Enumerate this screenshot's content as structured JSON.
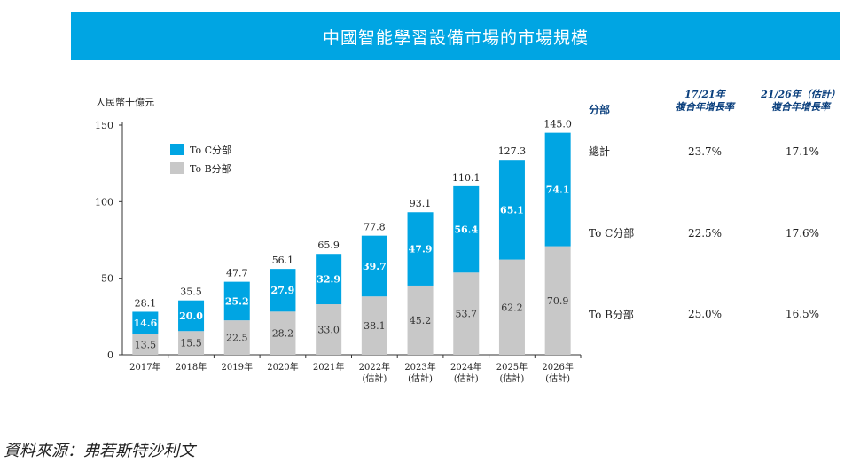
{
  "title": "中國智能學習設備市場的市場規模",
  "source": "資料來源：弗若斯特沙利文",
  "chart_data": {
    "type": "bar",
    "stacked": true,
    "ylabel": "人民幣十億元",
    "ylim": [
      0,
      150
    ],
    "yticks": [
      0,
      50,
      100,
      150
    ],
    "categories": [
      "2017年",
      "2018年",
      "2019年",
      "2020年",
      "2021年",
      "2022年",
      "2023年",
      "2024年",
      "2025年",
      "2026年"
    ],
    "category_sub": [
      "",
      "",
      "",
      "",
      "",
      "(估計)",
      "(估計)",
      "(估計)",
      "(估計)",
      "(估計)"
    ],
    "series": [
      {
        "name": "To B分部",
        "color": "#c8c8c8",
        "values": [
          13.5,
          15.5,
          22.5,
          28.2,
          33.0,
          38.1,
          45.2,
          53.7,
          62.2,
          70.9
        ]
      },
      {
        "name": "To C分部",
        "color": "#00a5e3",
        "values": [
          14.6,
          20.0,
          25.2,
          27.9,
          32.9,
          39.7,
          47.9,
          56.4,
          65.1,
          74.1
        ]
      }
    ],
    "totals": [
      28.1,
      35.5,
      47.7,
      56.1,
      65.9,
      77.8,
      93.1,
      110.1,
      127.3,
      145.0
    ],
    "legend": [
      {
        "label": "To C分部",
        "color": "#00a5e3"
      },
      {
        "label": "To B分部",
        "color": "#c8c8c8"
      }
    ],
    "legend_position": "top-left"
  },
  "table": {
    "col0_header": "分部",
    "col1_header_line1": "17/21年",
    "col1_header_line2": "複合年增長率",
    "col2_header_line1": "21/26年（估計）",
    "col2_header_line2": "複合年增長率",
    "rows": [
      {
        "label": "總計",
        "cagr1": "23.7%",
        "cagr2": "17.1%"
      },
      {
        "label": "To C分部",
        "cagr1": "22.5%",
        "cagr2": "17.6%"
      },
      {
        "label": "To B分部",
        "cagr1": "25.0%",
        "cagr2": "16.5%"
      }
    ]
  }
}
